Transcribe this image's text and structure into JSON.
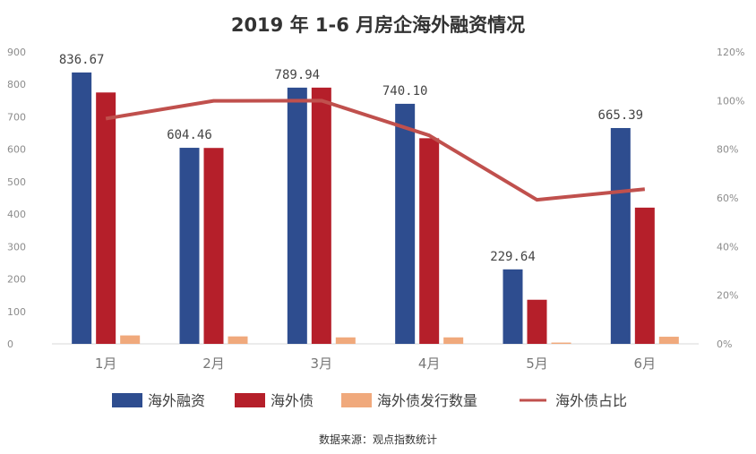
{
  "colors": {
    "financing": "#2e4d8f",
    "bond": "#b51f2a",
    "count": "#f0a97c",
    "ratio": "#c0504d"
  },
  "chart_data": {
    "type": "bar",
    "title": "2019 年 1-6 月房企海外融资情况",
    "categories": [
      "1月",
      "2月",
      "3月",
      "4月",
      "5月",
      "6月"
    ],
    "ylim": [
      0,
      900
    ],
    "y_ticks": [
      "0",
      "100",
      "200",
      "300",
      "400",
      "500",
      "600",
      "700",
      "800",
      "900"
    ],
    "y2lim": [
      0,
      120
    ],
    "y2_ticks": [
      "0%",
      "20%",
      "40%",
      "60%",
      "80%",
      "100%",
      "120%"
    ],
    "grid": false,
    "legend_position": "bottom",
    "series": [
      {
        "name": "海外融资",
        "type": "bar",
        "axis": "left",
        "values": [
          836.67,
          604.46,
          789.94,
          740.1,
          229.64,
          665.39
        ]
      },
      {
        "name": "海外债",
        "type": "bar",
        "axis": "left",
        "values": [
          775,
          604,
          790,
          634,
          136,
          420
        ]
      },
      {
        "name": "海外债发行数量",
        "type": "bar",
        "axis": "left",
        "values": [
          26,
          23,
          20,
          20,
          4,
          22
        ]
      },
      {
        "name": "海外债占比",
        "type": "line",
        "axis": "right",
        "values": [
          92.6,
          99.9,
          100,
          85.7,
          59.2,
          63.6
        ]
      }
    ],
    "data_labels": [
      "836.67",
      "604.46",
      "789.94",
      "740.10",
      "229.64",
      "665.39"
    ]
  },
  "source": "数据来源：观点指数统计"
}
